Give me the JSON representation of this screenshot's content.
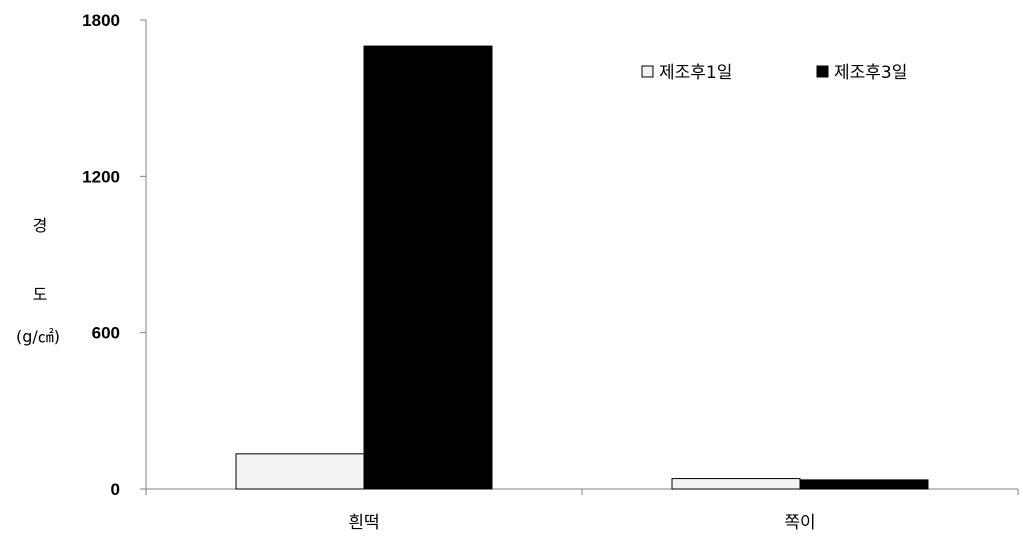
{
  "chart_data": {
    "type": "bar",
    "categories": [
      "흰떡",
      "쪽이"
    ],
    "series": [
      {
        "name": "제조후1일",
        "values": [
          135,
          40
        ],
        "color": "#f2f2f2"
      },
      {
        "name": "제조후3일",
        "values": [
          1700,
          35
        ],
        "color": "#000000"
      }
    ],
    "ylim": [
      0,
      1800
    ],
    "yticks": [
      0,
      600,
      1200,
      1800
    ],
    "ylabel": {
      "line1": "경",
      "line2": "도",
      "line3": "(g/㎠)"
    },
    "legend_position": "top-right",
    "grid": false
  }
}
